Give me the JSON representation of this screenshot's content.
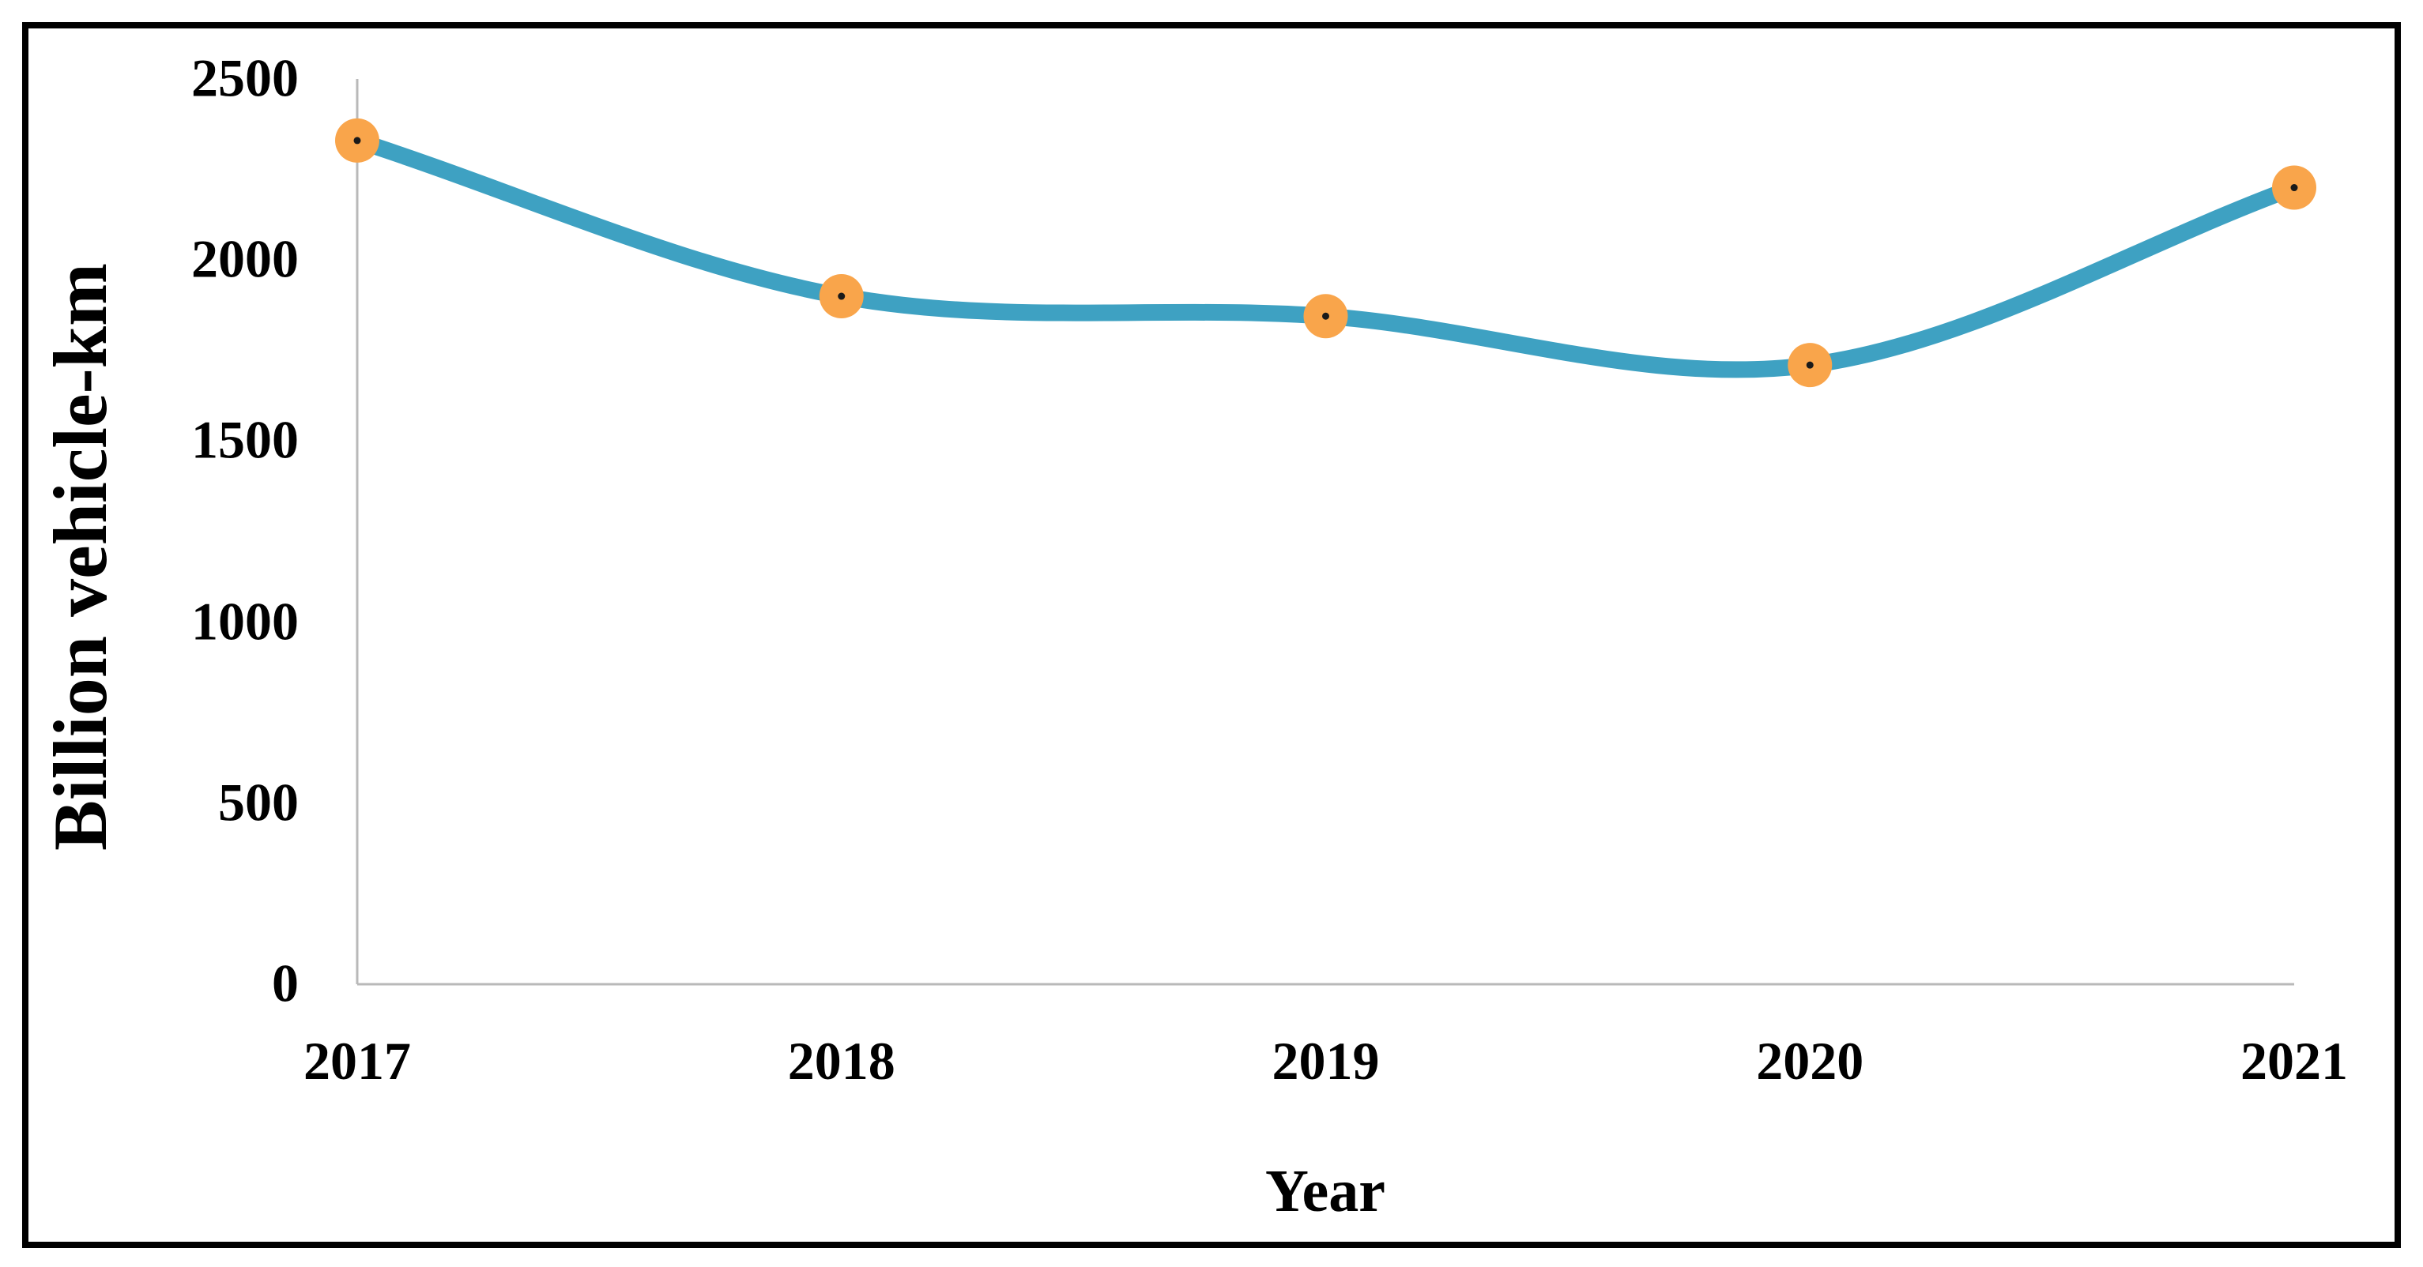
{
  "figure": {
    "background_color": "#ffffff",
    "border_color": "#000000"
  },
  "chart_data": {
    "type": "line",
    "title": "",
    "categories": [
      "2017",
      "2018",
      "2019",
      "2020",
      "2021"
    ],
    "series": [
      {
        "name": "Billion vehicle-km",
        "values": [
          2330,
          1900,
          1845,
          1710,
          2200
        ]
      }
    ],
    "xlabel": "Year",
    "ylabel": "Billion vehicle-km",
    "ylim": [
      0,
      2500
    ],
    "y_ticks": [
      0,
      500,
      1000,
      1500,
      2000,
      2500
    ],
    "grid": false,
    "legend": false,
    "smooth_line": true,
    "line_color": "#3ea1c2",
    "marker_color": "#f9a54b",
    "marker_dot_color": "#1a1a1a",
    "axis_line_color": "#b9b9b9"
  }
}
